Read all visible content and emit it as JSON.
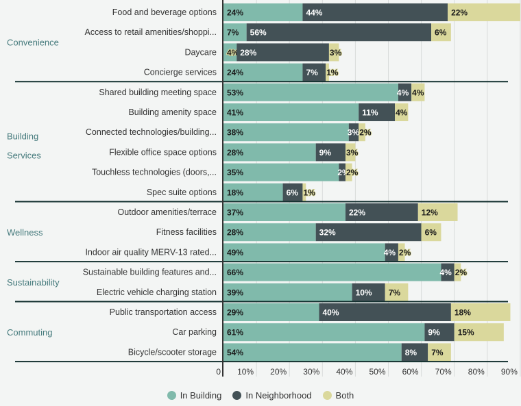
{
  "chart_data": {
    "type": "bar",
    "orientation": "horizontal",
    "stacked": true,
    "xlim": [
      0,
      90
    ],
    "xticks": [
      "0",
      "10%",
      "20%",
      "30%",
      "40%",
      "50%",
      "60%",
      "70%",
      "80%",
      "90%"
    ],
    "grid": true,
    "legend_position": "bottom",
    "series_names": [
      "In Building",
      "In Neighborhood",
      "Both"
    ],
    "colors": [
      "#80baab",
      "#435156",
      "#dad89c"
    ],
    "groups": [
      {
        "name": "Convenience",
        "items": [
          {
            "label": "Food and beverage options",
            "values": [
              24,
              44,
              22
            ]
          },
          {
            "label": "Access to retail amenities/shoppi...",
            "values": [
              7,
              56,
              6
            ]
          },
          {
            "label": "Daycare",
            "values": [
              4,
              28,
              3
            ]
          },
          {
            "label": "Concierge services",
            "values": [
              24,
              7,
              1
            ]
          }
        ]
      },
      {
        "name": "Building Services",
        "items": [
          {
            "label": "Shared building meeting space",
            "values": [
              53,
              4,
              4
            ]
          },
          {
            "label": "Building amenity space",
            "values": [
              41,
              11,
              4
            ]
          },
          {
            "label": "Connected technologies/building...",
            "values": [
              38,
              3,
              2
            ]
          },
          {
            "label": "Flexible office space options",
            "values": [
              28,
              9,
              3
            ]
          },
          {
            "label": "Touchless technologies (doors,...",
            "values": [
              35,
              2,
              2
            ]
          },
          {
            "label": "Spec suite options",
            "values": [
              18,
              6,
              1
            ]
          }
        ]
      },
      {
        "name": "Wellness",
        "items": [
          {
            "label": "Outdoor amenities/terrace",
            "values": [
              37,
              22,
              12
            ]
          },
          {
            "label": "Fitness facilities",
            "values": [
              28,
              32,
              6
            ]
          },
          {
            "label": "Indoor air quality MERV-13 rated...",
            "values": [
              49,
              4,
              2
            ]
          }
        ]
      },
      {
        "name": "Sustainability",
        "items": [
          {
            "label": "Sustainable building features and...",
            "values": [
              66,
              4,
              2
            ]
          },
          {
            "label": "Electric vehicle charging station",
            "values": [
              39,
              10,
              7
            ]
          }
        ]
      },
      {
        "name": "Commuting",
        "items": [
          {
            "label": "Public transportation access",
            "values": [
              29,
              40,
              18
            ]
          },
          {
            "label": "Car parking",
            "values": [
              61,
              9,
              15
            ]
          },
          {
            "label": "Bicycle/scooter storage",
            "values": [
              54,
              8,
              7
            ]
          }
        ]
      }
    ]
  }
}
